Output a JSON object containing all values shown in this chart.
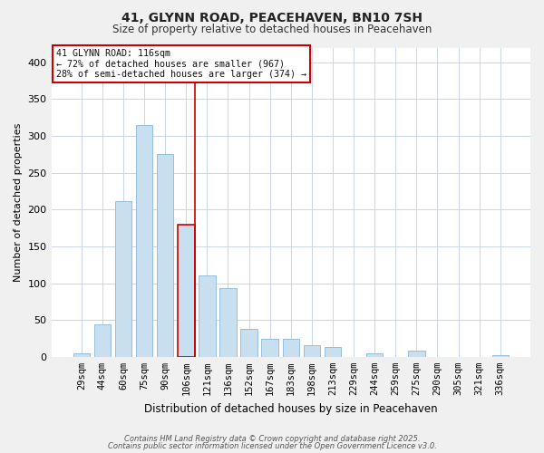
{
  "title": "41, GLYNN ROAD, PEACEHAVEN, BN10 7SH",
  "subtitle": "Size of property relative to detached houses in Peacehaven",
  "xlabel": "Distribution of detached houses by size in Peacehaven",
  "ylabel": "Number of detached properties",
  "categories": [
    "29sqm",
    "44sqm",
    "60sqm",
    "75sqm",
    "90sqm",
    "106sqm",
    "121sqm",
    "136sqm",
    "152sqm",
    "167sqm",
    "183sqm",
    "198sqm",
    "213sqm",
    "229sqm",
    "244sqm",
    "259sqm",
    "275sqm",
    "290sqm",
    "305sqm",
    "321sqm",
    "336sqm"
  ],
  "values": [
    5,
    44,
    211,
    315,
    275,
    180,
    110,
    93,
    38,
    24,
    24,
    16,
    13,
    0,
    5,
    0,
    8,
    0,
    0,
    0,
    2
  ],
  "bar_color": "#c8dff0",
  "bar_edge_color": "#8ab8d8",
  "highlight_index": 5,
  "highlight_color": "#cc0000",
  "ylim": [
    0,
    420
  ],
  "yticks": [
    0,
    50,
    100,
    150,
    200,
    250,
    300,
    350,
    400
  ],
  "annotation_title": "41 GLYNN ROAD: 116sqm",
  "annotation_line1": "← 72% of detached houses are smaller (967)",
  "annotation_line2": "28% of semi-detached houses are larger (374) →",
  "footer1": "Contains HM Land Registry data © Crown copyright and database right 2025.",
  "footer2": "Contains public sector information licensed under the Open Government Licence v3.0.",
  "background_color": "#f0f0f0",
  "plot_background": "#ffffff",
  "grid_color": "#c8d4e8"
}
